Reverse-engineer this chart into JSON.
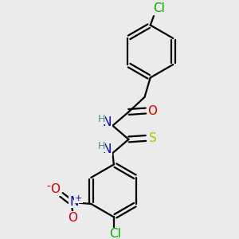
{
  "bg_color": "#ebebeb",
  "bond_color": "#000000",
  "bond_width": 1.6,
  "atom_colors": {
    "C": "#000000",
    "N": "#0000cc",
    "O": "#cc0000",
    "S": "#bbbb00",
    "Cl": "#00aa00",
    "H": "#4a8a8a"
  },
  "fontsize": 11
}
